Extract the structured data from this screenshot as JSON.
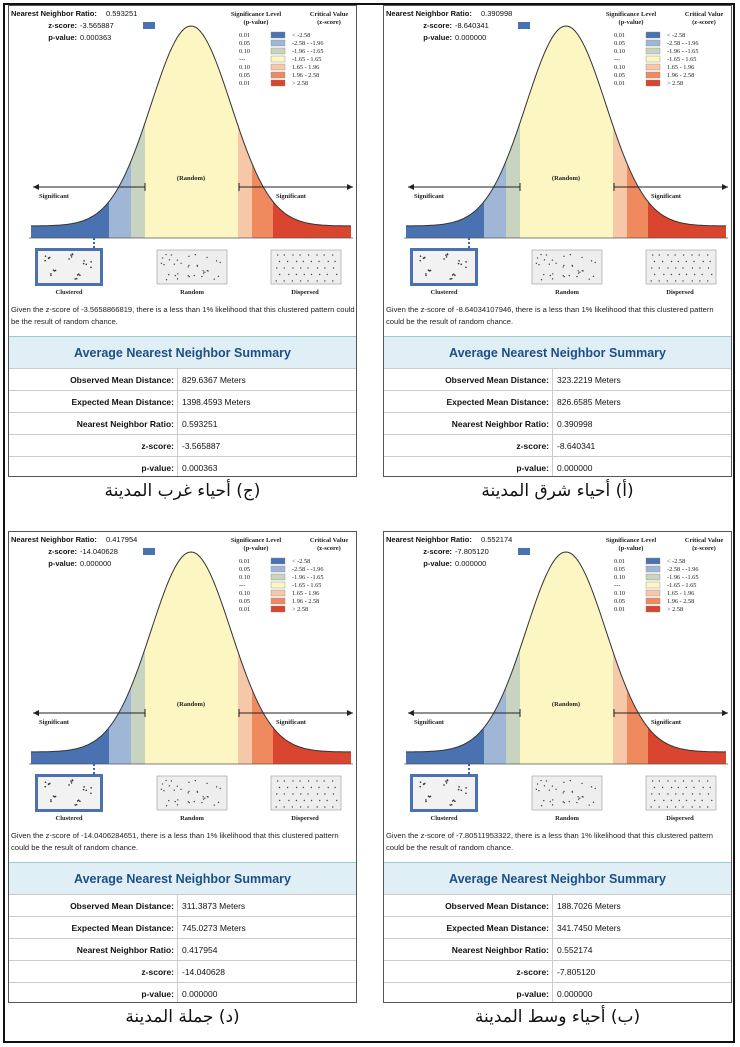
{
  "labels": {
    "nnr": "Nearest Neighbor Ratio:",
    "zscore": "z-score:",
    "pvalue": "p-value:",
    "sig_title": "Significance Level",
    "sig_sub": "(p-value)",
    "crit_title": "Critical Value",
    "crit_sub": "(z-score)",
    "significant": "Significant",
    "random_center": "(Random)",
    "clustered": "Clustered",
    "random": "Random",
    "dispersed": "Dispersed",
    "summary_title": "Average Nearest Neighbor Summary",
    "observed": "Observed Mean Distance:",
    "expected": "Expected Mean Distance:",
    "ratio": "Nearest Neighbor Ratio:",
    "z": "z-score:",
    "p": "p-value:"
  },
  "legend": {
    "p": [
      "0.01",
      "0.05",
      "0.10",
      "---",
      "0.10",
      "0.05",
      "0.01"
    ],
    "z": [
      "< -2.58",
      "-2.58 - -1.96",
      "-1.96 - -1.65",
      "-1.65 - 1.65",
      "1.65 - 1.96",
      "1.96 - 2.58",
      "> 2.58"
    ],
    "colors": [
      "#4a72b0",
      "#9fb6d6",
      "#c8d4c0",
      "#fbf6c2",
      "#f6c8a8",
      "#ee8a5e",
      "#d9452e"
    ]
  },
  "panels": [
    {
      "caption": "(ج) أحياء غرب المدينة",
      "nnr": "0.593251",
      "z": "-3.565887",
      "p": "0.000363",
      "message": "Given the z-score of -3.5658866819, there is a less than 1% likelihood that this clustered pattern could be the result of random chance.",
      "observed": "829.6367 Meters",
      "expected": "1398.4593 Meters",
      "ratio": "0.593251",
      "zscore": "-3.565887",
      "pvalue": "0.000363"
    },
    {
      "caption": "(أ) أحياء شرق المدينة",
      "nnr": "0.390998",
      "z": "-8.640341",
      "p": "0.000000",
      "message": "Given the z-score of -8.64034107946, there is a less than 1% likelihood that this clustered pattern could be the result of random chance.",
      "observed": "323.2219 Meters",
      "expected": "826.6585 Meters",
      "ratio": "0.390998",
      "zscore": "-8.640341",
      "pvalue": "0.000000"
    },
    {
      "caption": "(د) جملة المدينة",
      "nnr": "0.417954",
      "z": "-14.040628",
      "p": "0.000000",
      "message": "Given the z-score of -14.0406284651, there is a less than 1% likelihood that this clustered pattern could be the result of random chance.",
      "observed": "311.3873 Meters",
      "expected": "745.0273 Meters",
      "ratio": "0.417954",
      "zscore": "-14.040628",
      "pvalue": "0.000000"
    },
    {
      "caption": "(ب) أحياء وسط المدينة",
      "nnr": "0.552174",
      "z": "-7.805120",
      "p": "0.000000",
      "message": "Given the z-score of -7.80511953322, there is a less than 1% likelihood that this clustered pattern could be the result of random chance.",
      "observed": "188.7026 Meters",
      "expected": "341.7450 Meters",
      "ratio": "0.552174",
      "zscore": "-7.805120",
      "pvalue": "0.000000"
    }
  ]
}
